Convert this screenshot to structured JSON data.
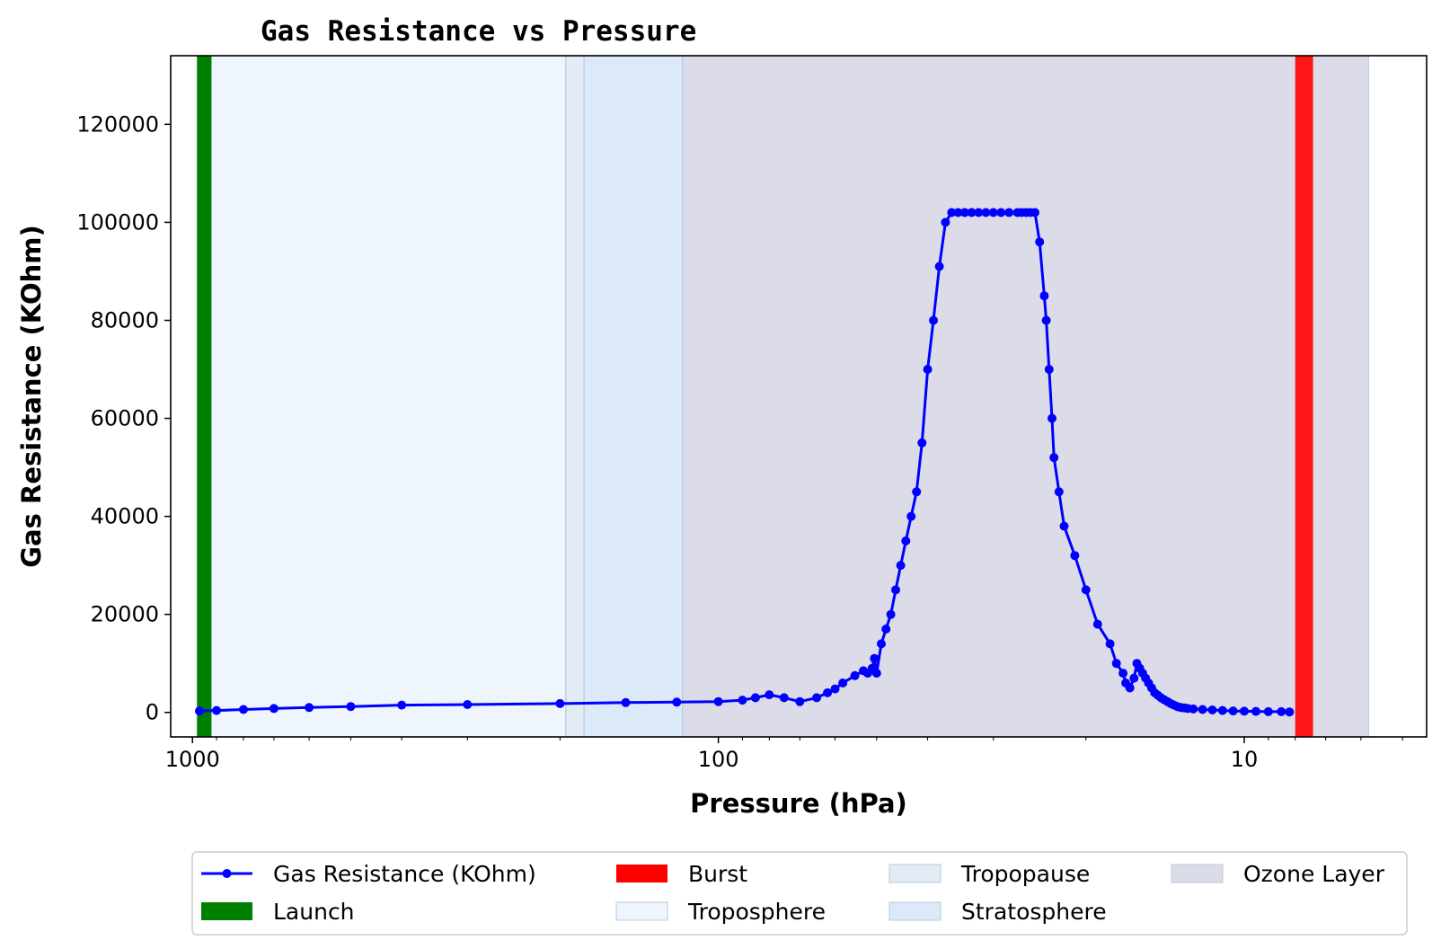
{
  "chart_data": {
    "type": "scatter",
    "title": "Gas Resistance vs Pressure",
    "xlabel": "Pressure (hPa)",
    "ylabel": "Gas Resistance (KOhm)",
    "x_scale": "log",
    "x_inverted": true,
    "xlim": [
      1100,
      4.5
    ],
    "ylim": [
      -5000,
      134000
    ],
    "xticks": [
      1000,
      100,
      10
    ],
    "xtick_labels": [
      "1000",
      "100",
      "10"
    ],
    "yticks": [
      0,
      20000,
      40000,
      60000,
      80000,
      100000,
      120000
    ],
    "ytick_labels": [
      "0",
      "20000",
      "40000",
      "60000",
      "80000",
      "100000",
      "120000"
    ],
    "grid": false,
    "legend_placement": "bottom-center (below axes, 4 columns)",
    "series": [
      {
        "name": "Gas Resistance (KOhm)",
        "color": "#0000ff",
        "style": "line-with-markers",
        "x": [
          970,
          900,
          800,
          700,
          600,
          500,
          400,
          300,
          200,
          150,
          120,
          100,
          90,
          85,
          80,
          75,
          70,
          65,
          62,
          60,
          58,
          55,
          53,
          52,
          51,
          50.5,
          50,
          49,
          48,
          47,
          46,
          45,
          44,
          43,
          42,
          41,
          40,
          39,
          38,
          37,
          36,
          35,
          34,
          33,
          32,
          31,
          30,
          29,
          28,
          27,
          26.5,
          26,
          25.5,
          25,
          24.5,
          24,
          23.8,
          23.5,
          23.2,
          23,
          22.5,
          22,
          21,
          20,
          19,
          18,
          17.5,
          17,
          16.8,
          16.5,
          16.2,
          16,
          15.8,
          15.6,
          15.4,
          15.2,
          15,
          14.8,
          14.6,
          14.4,
          14.2,
          14,
          13.8,
          13.6,
          13.4,
          13.2,
          13,
          12.8,
          12.5,
          12,
          11.5,
          11,
          10.5,
          10,
          9.5,
          9,
          8.5,
          8.2
        ],
        "y": [
          300,
          400,
          600,
          800,
          1000,
          1200,
          1500,
          1600,
          1800,
          2000,
          2100,
          2200,
          2500,
          3000,
          3600,
          3000,
          2200,
          3000,
          4000,
          4800,
          6000,
          7500,
          8500,
          8000,
          9000,
          11000,
          8000,
          14000,
          17000,
          20000,
          25000,
          30000,
          35000,
          40000,
          45000,
          55000,
          70000,
          80000,
          91000,
          100000,
          102000,
          102000,
          102000,
          102000,
          102000,
          102000,
          102000,
          102000,
          102000,
          102000,
          102000,
          102000,
          102000,
          102000,
          96000,
          85000,
          80000,
          70000,
          60000,
          52000,
          45000,
          38000,
          32000,
          25000,
          18000,
          14000,
          10000,
          8000,
          6000,
          5000,
          7000,
          10000,
          9000,
          8000,
          7000,
          6000,
          5000,
          4000,
          3500,
          3000,
          2600,
          2200,
          1800,
          1500,
          1200,
          1000,
          900,
          800,
          700,
          600,
          500,
          400,
          300,
          250,
          200,
          150,
          150,
          100
        ]
      }
    ],
    "regions": [
      {
        "name": "Launch",
        "type": "band",
        "x": [
          980,
          920
        ],
        "color": "#008000",
        "alpha": 1.0
      },
      {
        "name": "Burst",
        "type": "band",
        "x": [
          8.0,
          7.4
        ],
        "color": "#ff0000",
        "alpha": 0.9
      },
      {
        "name": "Troposphere",
        "type": "span",
        "x": [
          980,
          195
        ],
        "color": "#eef5fc",
        "alpha": 1.0
      },
      {
        "name": "Tropopause",
        "type": "span",
        "x": [
          195,
          180
        ],
        "color": "#e3ecf5",
        "alpha": 1.0
      },
      {
        "name": "Stratosphere",
        "type": "span",
        "x": [
          180,
          117
        ],
        "color": "#dce9f9",
        "alpha": 1.0
      },
      {
        "name": "Ozone Layer",
        "type": "span",
        "x": [
          117,
          5.8
        ],
        "color": "#dcdce8",
        "alpha": 1.0
      }
    ],
    "legend": [
      {
        "label": "Gas Resistance (KOhm)",
        "kind": "line",
        "color": "#0000ff"
      },
      {
        "label": "Launch",
        "kind": "patch",
        "color": "#008000"
      },
      {
        "label": "Burst",
        "kind": "patch",
        "color": "#ff0000"
      },
      {
        "label": "Troposphere",
        "kind": "patch",
        "color": "#eef5fc"
      },
      {
        "label": "Tropopause",
        "kind": "patch",
        "color": "#e3ecf5"
      },
      {
        "label": "Stratosphere",
        "kind": "patch",
        "color": "#dce9f9"
      },
      {
        "label": "Ozone Layer",
        "kind": "patch",
        "color": "#dcdce8"
      }
    ]
  }
}
